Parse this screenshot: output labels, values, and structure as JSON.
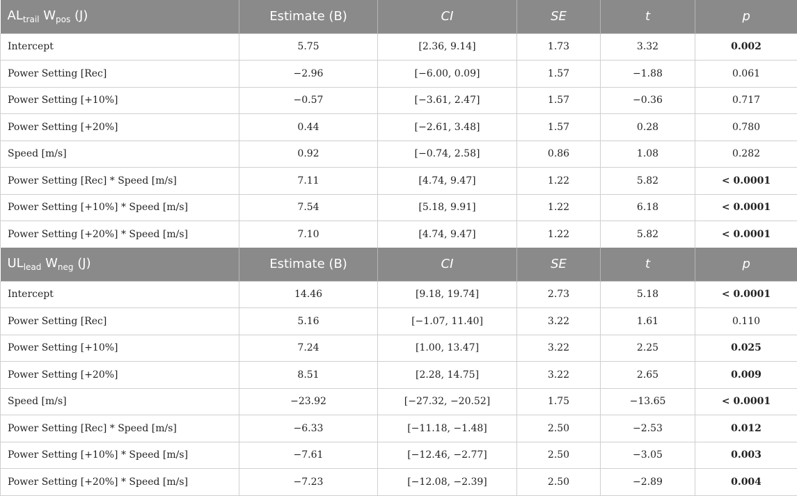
{
  "columns": {
    "estimate": "Estimate (B)",
    "ci": "CI",
    "se": "SE",
    "t": "t",
    "p": "p"
  },
  "sections": [
    {
      "title_main": "AL",
      "title_sub": "trail",
      "title_main2": " W",
      "title_sub2": "pos",
      "title_unit": " (J)",
      "rows": [
        {
          "label": "Intercept",
          "estimate": "5.75",
          "ci": "[2.36, 9.14]",
          "se": "1.73",
          "t": "3.32",
          "p": "0.002",
          "p_bold": true
        },
        {
          "label": "Power Setting [Rec]",
          "estimate": "−2.96",
          "ci": "[−6.00, 0.09]",
          "se": "1.57",
          "t": "−1.88",
          "p": "0.061",
          "p_bold": false
        },
        {
          "label": "Power Setting [+10%]",
          "estimate": "−0.57",
          "ci": "[−3.61, 2.47]",
          "se": "1.57",
          "t": "−0.36",
          "p": "0.717",
          "p_bold": false
        },
        {
          "label": "Power Setting [+20%]",
          "estimate": "0.44",
          "ci": "[−2.61, 3.48]",
          "se": "1.57",
          "t": "0.28",
          "p": "0.780",
          "p_bold": false
        },
        {
          "label": "Speed [m/s]",
          "estimate": "0.92",
          "ci": "[−0.74, 2.58]",
          "se": "0.86",
          "t": "1.08",
          "p": "0.282",
          "p_bold": false
        },
        {
          "label": "Power Setting [Rec] * Speed [m/s]",
          "estimate": "7.11",
          "ci": "[4.74, 9.47]",
          "se": "1.22",
          "t": "5.82",
          "p": "< 0.0001",
          "p_bold": true
        },
        {
          "label": "Power Setting [+10%] * Speed [m/s]",
          "estimate": "7.54",
          "ci": "[5.18, 9.91]",
          "se": "1.22",
          "t": "6.18",
          "p": "< 0.0001",
          "p_bold": true
        },
        {
          "label": "Power Setting [+20%] * Speed [m/s]",
          "estimate": "7.10",
          "ci": "[4.74, 9.47]",
          "se": "1.22",
          "t": "5.82",
          "p": "< 0.0001",
          "p_bold": true
        }
      ]
    },
    {
      "title_main": "UL",
      "title_sub": "lead",
      "title_main2": " W",
      "title_sub2": "neg",
      "title_unit": " (J)",
      "rows": [
        {
          "label": "Intercept",
          "estimate": "14.46",
          "ci": "[9.18, 19.74]",
          "se": "2.73",
          "t": "5.18",
          "p": "< 0.0001",
          "p_bold": true
        },
        {
          "label": "Power Setting [Rec]",
          "estimate": "5.16",
          "ci": "[−1.07, 11.40]",
          "se": "3.22",
          "t": "1.61",
          "p": "0.110",
          "p_bold": false
        },
        {
          "label": "Power Setting [+10%]",
          "estimate": "7.24",
          "ci": "[1.00, 13.47]",
          "se": "3.22",
          "t": "2.25",
          "p": "0.025",
          "p_bold": true
        },
        {
          "label": "Power Setting [+20%]",
          "estimate": "8.51",
          "ci": "[2.28, 14.75]",
          "se": "3.22",
          "t": "2.65",
          "p": "0.009",
          "p_bold": true
        },
        {
          "label": "Speed [m/s]",
          "estimate": "−23.92",
          "ci": "[−27.32, −20.52]",
          "se": "1.75",
          "t": "−13.65",
          "p": "< 0.0001",
          "p_bold": true
        },
        {
          "label": "Power Setting [Rec] * Speed [m/s]",
          "estimate": "−6.33",
          "ci": "[−11.18, −1.48]",
          "se": "2.50",
          "t": "−2.53",
          "p": "0.012",
          "p_bold": true
        },
        {
          "label": "Power Setting [+10%] * Speed [m/s]",
          "estimate": "−7.61",
          "ci": "[−12.46, −2.77]",
          "se": "2.50",
          "t": "−3.05",
          "p": "0.003",
          "p_bold": true
        },
        {
          "label": "Power Setting [+20%] * Speed [m/s]",
          "estimate": "−7.23",
          "ci": "[−12.08, −2.39]",
          "se": "2.50",
          "t": "−2.89",
          "p": "0.004",
          "p_bold": true
        }
      ]
    }
  ]
}
